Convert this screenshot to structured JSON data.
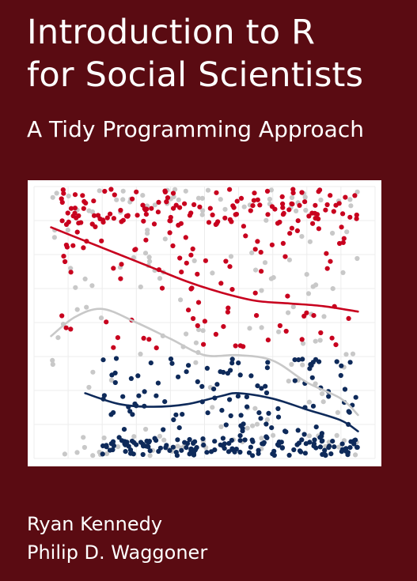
{
  "cover": {
    "title_line1": "Introduction to R",
    "title_line2": "for Social Scientists",
    "subtitle": "A Tidy Programming Approach",
    "authors": [
      "Ryan Kennedy",
      "Philip D. Waggoner"
    ]
  },
  "colors": {
    "background": "#5a0b12",
    "red_series": "#c8001e",
    "grey_series": "#c8c8c8",
    "navy_series": "#0e2a5a"
  },
  "chart_data": {
    "type": "scatter",
    "title": "",
    "xlabel": "",
    "ylabel": "",
    "xlim": [
      0,
      100
    ],
    "ylim": [
      0,
      100
    ],
    "grid": true,
    "series": [
      {
        "color": "#c8001e",
        "trend": [
          [
            5,
            85
          ],
          [
            15,
            80
          ],
          [
            25,
            75
          ],
          [
            35,
            70
          ],
          [
            45,
            65
          ],
          [
            55,
            61
          ],
          [
            65,
            58
          ],
          [
            75,
            57
          ],
          [
            85,
            56
          ],
          [
            95,
            54
          ]
        ],
        "y_center": 78,
        "y_spread": 22
      },
      {
        "color": "#c8c8c8",
        "trend": [
          [
            5,
            45
          ],
          [
            12,
            52
          ],
          [
            20,
            55
          ],
          [
            30,
            50
          ],
          [
            40,
            44
          ],
          [
            50,
            38
          ],
          [
            60,
            38
          ],
          [
            70,
            36
          ],
          [
            80,
            28
          ],
          [
            90,
            22
          ],
          [
            95,
            16
          ]
        ],
        "y_center": 55,
        "y_spread": 40
      },
      {
        "color": "#0e2a5a",
        "trend": [
          [
            15,
            24
          ],
          [
            25,
            20
          ],
          [
            35,
            19
          ],
          [
            45,
            20
          ],
          [
            55,
            23
          ],
          [
            60,
            24
          ],
          [
            70,
            22
          ],
          [
            80,
            18
          ],
          [
            90,
            14
          ],
          [
            95,
            10
          ]
        ],
        "y_center": 14,
        "y_spread": 22
      }
    ]
  }
}
